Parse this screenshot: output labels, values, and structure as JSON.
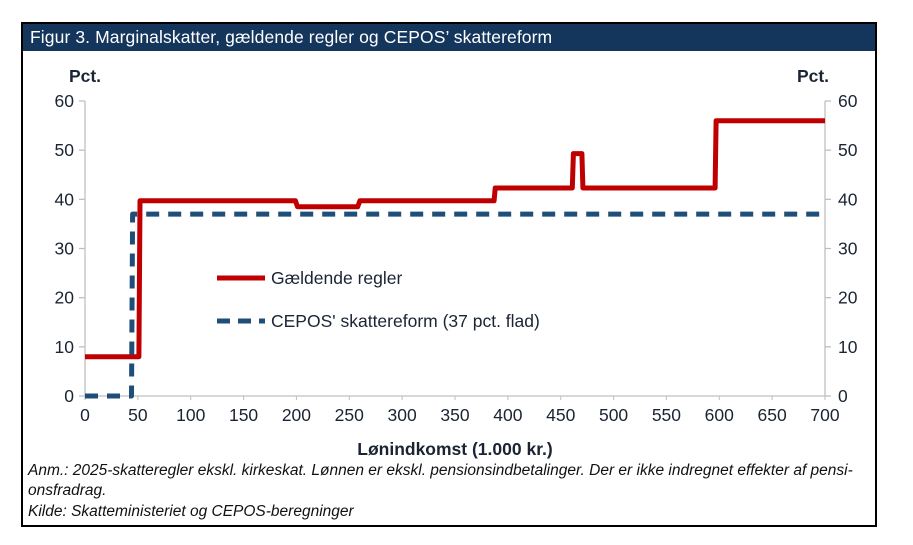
{
  "figure": {
    "title": "Figur 3. Marginalskatter, gældende regler og CEPOS’ skattereform",
    "title_bar_color": "#15365c",
    "border_color": "#000000"
  },
  "chart_data": {
    "type": "line",
    "xlabel": "Lønindkomst (1.000 kr.)",
    "y_unit_label_left": "Pct.",
    "y_unit_label_right": "Pct.",
    "xlim": [
      0,
      700
    ],
    "ylim": [
      0,
      60
    ],
    "xticks": [
      0,
      50,
      100,
      150,
      200,
      250,
      300,
      350,
      400,
      450,
      500,
      550,
      600,
      650,
      700
    ],
    "yticks": [
      0,
      10,
      20,
      30,
      40,
      50,
      60
    ],
    "grid": false,
    "legend_position": "inside-center-left",
    "axis_color": "#bfbfbf",
    "text_color": "#1a2433",
    "series": [
      {
        "name": "Gældende regler",
        "color": "#c00000",
        "style": "solid",
        "points": [
          [
            0,
            8
          ],
          [
            51,
            8
          ],
          [
            52,
            39.7
          ],
          [
            199,
            39.7
          ],
          [
            201,
            38.5
          ],
          [
            258,
            38.5
          ],
          [
            260,
            39.7
          ],
          [
            387,
            39.7
          ],
          [
            388,
            42.3
          ],
          [
            461,
            42.3
          ],
          [
            462,
            49.3
          ],
          [
            470,
            49.3
          ],
          [
            471,
            42.3
          ],
          [
            596,
            42.3
          ],
          [
            597,
            56
          ],
          [
            700,
            56
          ]
        ]
      },
      {
        "name": "CEPOS' skattereform (37 pct. flad)",
        "color": "#1f4e79",
        "style": "dashed",
        "points": [
          [
            0,
            0
          ],
          [
            44,
            0
          ],
          [
            45,
            37
          ],
          [
            700,
            37
          ]
        ]
      }
    ]
  },
  "footnotes": {
    "anm_line1": "Anm.: 2025-skatteregler ekskl. kirkeskat. Lønnen er ekskl. pensionsindbetalinger. Der er ikke indregnet effekter af pensi-",
    "anm_line2": "onsfradrag.",
    "kilde": "Kilde: Skatteministeriet og CEPOS-beregninger"
  }
}
